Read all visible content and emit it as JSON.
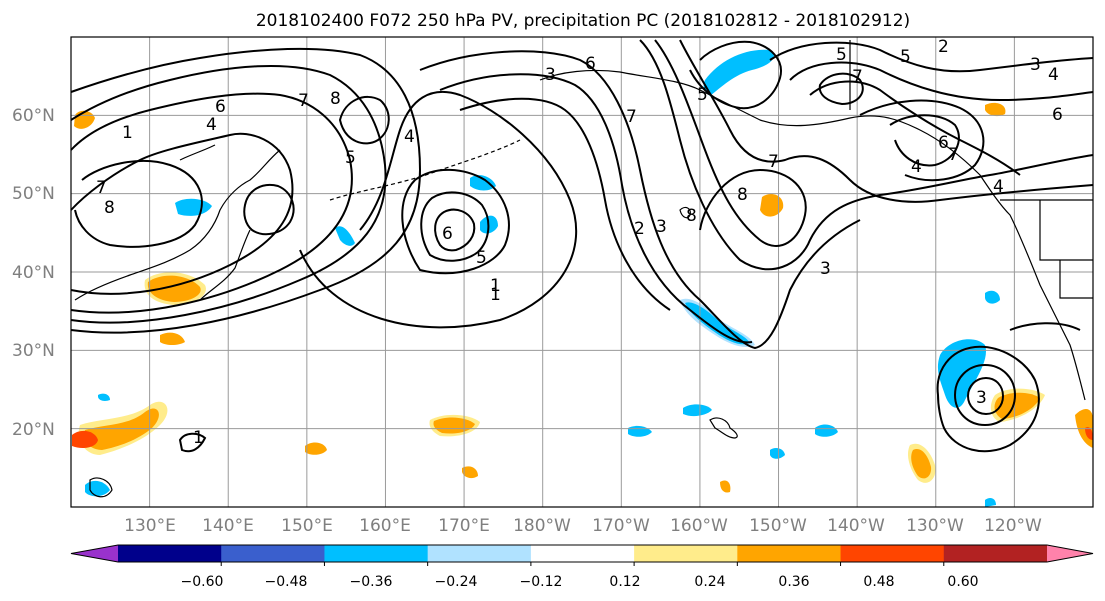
{
  "title": "2018102400 F072 250 hPa PV, precipitation PC (2018102812 - 2018102912)",
  "map": {
    "lat_labels": [
      "60°N",
      "50°N",
      "40°N",
      "30°N",
      "20°N"
    ],
    "lon_labels": [
      "130°E",
      "140°E",
      "150°E",
      "160°E",
      "170°E",
      "180°W",
      "170°W",
      "160°W",
      "150°W",
      "140°W",
      "130°W",
      "120°W"
    ],
    "lat_range": [
      10,
      70
    ],
    "lon_range": [
      120,
      250
    ],
    "grid": true,
    "contour_labels": [
      "6",
      "4",
      "7",
      "8",
      "7",
      "8",
      "5",
      "4",
      "6",
      "5",
      "1",
      "2",
      "3",
      "8",
      "7",
      "8",
      "5",
      "7",
      "3",
      "1",
      "2",
      "4",
      "5",
      "7",
      "6",
      "3",
      "4",
      "6",
      "5",
      "3",
      "4",
      "7",
      "6",
      "1",
      "3",
      "1"
    ]
  },
  "colorbar": {
    "tick_labels": [
      "−0.60",
      "−0.48",
      "−0.36",
      "−0.24",
      "−0.12",
      "0.12",
      "0.24",
      "0.36",
      "0.48",
      "0.60"
    ],
    "colors": [
      "#9932CC",
      "#00008B",
      "#3A5FCD",
      "#00BFFF",
      "#B0E2FF",
      "#FFFFFF",
      "#FFEC8B",
      "#FFA500",
      "#FF4500",
      "#B22222",
      "#FF82AB"
    ]
  }
}
